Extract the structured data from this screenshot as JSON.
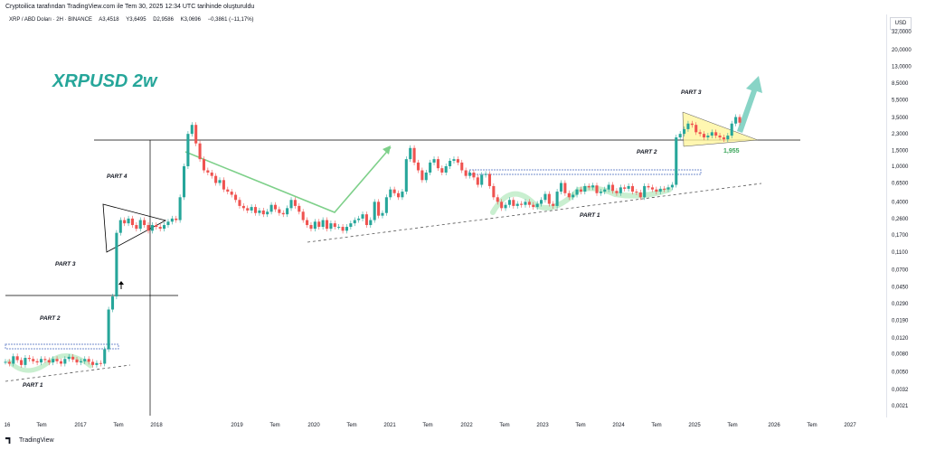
{
  "header": {
    "publish_line": "Cryptoilica tarafından TradingView.com ile Tem 30, 2025 12:34 UTC tarihinde oluşturuldu",
    "symbol": "XRP / ABD Doları · 2H · BINANCE",
    "open": "A3,4518",
    "high": "Y3,6495",
    "low": "D2,9586",
    "close": "K3,0696",
    "change": "−0,3861 (−11,17%)"
  },
  "currency": "USD",
  "footer": {
    "brand": "TradingView"
  },
  "colors": {
    "up": "#26a69a",
    "down": "#ef5350",
    "title": "#26a69a",
    "arrow_green": "#7ed08a",
    "arrow_teal": "#88d4c6",
    "triangle_fill": "#fff59d",
    "channel_blue": "#8fa3d8"
  },
  "chart_data": {
    "type": "candlestick",
    "title": "XRPUSD 2w",
    "y_scale": "log",
    "y_ticks": [
      "32,0000",
      "20,0000",
      "13,0000",
      "8,5000",
      "5,5000",
      "3,5000",
      "2,3000",
      "1,5000",
      "1,0000",
      "0,6500",
      "0,4000",
      "0,2600",
      "0,1700",
      "0,1100",
      "0,0700",
      "0,0450",
      "0,0290",
      "0,0190",
      "0,0120",
      "0,0080",
      "0,0050",
      "0,0032",
      "0,0021"
    ],
    "x_ticks": [
      "16",
      "Tem",
      "2017",
      "Tem",
      "2018",
      "2019",
      "Tem",
      "2020",
      "Tem",
      "2021",
      "Tem",
      "2022",
      "Tem",
      "2023",
      "Tem",
      "2024",
      "Tem",
      "2025",
      "Tem",
      "2026",
      "Tem",
      "2027"
    ],
    "annotations": [
      {
        "text": "PART 1",
        "kind": "label"
      },
      {
        "text": "PART 2",
        "kind": "label"
      },
      {
        "text": "PART 3",
        "kind": "label"
      },
      {
        "text": "PART 4",
        "kind": "label"
      },
      {
        "text": "PART 1",
        "kind": "label"
      },
      {
        "text": "PART 2",
        "kind": "label"
      },
      {
        "text": "PART 3",
        "kind": "label"
      },
      {
        "text": "1,955",
        "kind": "price-label"
      }
    ],
    "series": [
      {
        "values": [
          0.0065,
          0.0062,
          0.0075,
          0.0068,
          0.006,
          0.0072,
          0.007,
          0.0066,
          0.0064,
          0.007,
          0.0068,
          0.0064,
          0.007,
          0.0066,
          0.0062,
          0.007,
          0.0074,
          0.0069,
          0.0064,
          0.0066,
          0.007,
          0.0065,
          0.006,
          0.0063,
          0.0062,
          0.009,
          0.025,
          0.035,
          0.18,
          0.25,
          0.23,
          0.26,
          0.22,
          0.2,
          0.25,
          0.22,
          0.19,
          0.22,
          0.21,
          0.2,
          0.22,
          0.24,
          0.26,
          0.25,
          0.45,
          1.0,
          2.3,
          2.9,
          1.8,
          1.2,
          0.9,
          0.85,
          0.78,
          0.65,
          0.7,
          0.55,
          0.52,
          0.48,
          0.42,
          0.36,
          0.34,
          0.32,
          0.35,
          0.3,
          0.32,
          0.29,
          0.31,
          0.37,
          0.33,
          0.3,
          0.29,
          0.34,
          0.42,
          0.36,
          0.31,
          0.25,
          0.22,
          0.2,
          0.24,
          0.21,
          0.25,
          0.2,
          0.23,
          0.21,
          0.21,
          0.19,
          0.21,
          0.23,
          0.25,
          0.26,
          0.29,
          0.22,
          0.25,
          0.4,
          0.28,
          0.3,
          0.45,
          0.55,
          0.5,
          0.45,
          0.52,
          1.2,
          1.6,
          1.1,
          0.9,
          0.7,
          0.85,
          1.1,
          1.2,
          0.95,
          0.85,
          1.0,
          1.15,
          1.2,
          1.1,
          0.9,
          0.78,
          0.85,
          0.75,
          0.62,
          0.8,
          0.82,
          0.6,
          0.45,
          0.4,
          0.34,
          0.37,
          0.42,
          0.36,
          0.38,
          0.37,
          0.4,
          0.37,
          0.35,
          0.38,
          0.42,
          0.49,
          0.38,
          0.36,
          0.52,
          0.65,
          0.5,
          0.45,
          0.48,
          0.55,
          0.52,
          0.6,
          0.58,
          0.61,
          0.5,
          0.52,
          0.55,
          0.62,
          0.53,
          0.5,
          0.58,
          0.56,
          0.6,
          0.52,
          0.51,
          0.45,
          0.6,
          0.58,
          0.55,
          0.52,
          0.56,
          0.55,
          0.58,
          0.62,
          2.1,
          2.3,
          2.6,
          3.0,
          2.9,
          2.4,
          2.3,
          2.1,
          2.2,
          2.4,
          2.2,
          2.1,
          2.0,
          2.2,
          3.0,
          3.55,
          3.07
        ]
      }
    ],
    "xlabel": "",
    "ylabel": ""
  }
}
